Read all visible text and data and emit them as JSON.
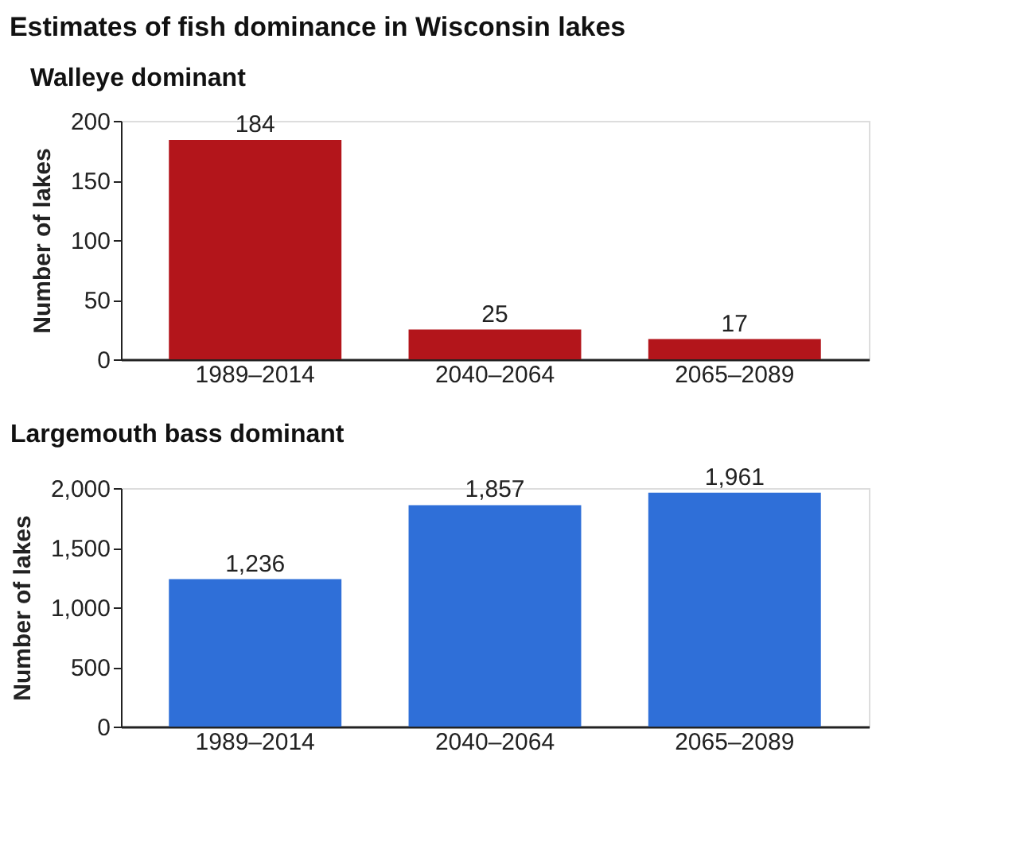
{
  "chart_data": [
    {
      "type": "bar",
      "title": "Estimates of fish dominance in Wisconsin lakes",
      "subtitle": "Walleye dominant",
      "ylabel": "Number of lakes",
      "categories": [
        "1989–2014",
        "2040–2064",
        "2065–2089"
      ],
      "series": [
        {
          "color": "#b3151b",
          "values": [
            184,
            25,
            17
          ]
        }
      ],
      "data_labels": true,
      "ylim": [
        0,
        200
      ],
      "yticks": [
        0,
        50,
        100,
        150,
        200
      ],
      "grid": false
    },
    {
      "type": "bar",
      "title": "Largemouth bass dominant",
      "ylabel": "Number of lakes",
      "categories": [
        "1989–2014",
        "2040–2064",
        "2065–2089"
      ],
      "series": [
        {
          "color": "#2f6fd8",
          "values": [
            1236,
            1857,
            1961
          ],
          "value_labels": [
            "1,236",
            "1,857",
            "1,961"
          ]
        }
      ],
      "ylim": [
        0,
        2000
      ],
      "yticks": [
        0,
        500,
        {
          "value": 1000,
          "label": "1,000"
        },
        {
          "value": 1500,
          "label": "1,500"
        },
        {
          "value": 2000,
          "label": "2,000"
        }
      ],
      "grid": false
    }
  ]
}
